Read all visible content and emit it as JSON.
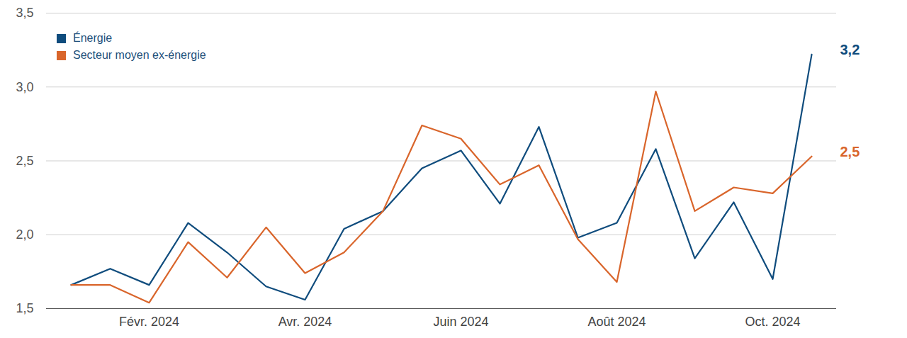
{
  "chart_data": {
    "type": "line",
    "categories": [
      null,
      null,
      "Févr. 2024",
      null,
      null,
      null,
      "Avr. 2024",
      null,
      null,
      null,
      "Juin 2024",
      null,
      null,
      null,
      "Août 2024",
      null,
      null,
      null,
      "Oct. 2024",
      null
    ],
    "series": [
      {
        "name": "Énergie",
        "color": "#0f4c7d",
        "values": [
          1.66,
          1.77,
          1.66,
          2.08,
          1.88,
          1.65,
          1.56,
          2.04,
          2.16,
          2.45,
          2.57,
          2.21,
          2.73,
          1.98,
          2.08,
          2.58,
          1.84,
          2.22,
          1.7,
          3.22
        ],
        "value_labels": [
          null,
          null,
          null,
          null,
          null,
          null,
          null,
          null,
          null,
          null,
          null,
          null,
          null,
          null,
          null,
          null,
          null,
          null,
          null,
          "3,2"
        ]
      },
      {
        "name": "Secteur moyen ex-énergie",
        "color": "#d9652b",
        "values": [
          1.66,
          1.66,
          1.54,
          1.95,
          1.71,
          2.05,
          1.74,
          1.88,
          2.16,
          2.74,
          2.65,
          2.34,
          2.47,
          1.97,
          1.68,
          2.97,
          2.16,
          2.32,
          2.28,
          2.53
        ],
        "value_labels": [
          null,
          null,
          null,
          null,
          null,
          null,
          null,
          null,
          null,
          null,
          null,
          null,
          null,
          null,
          null,
          null,
          null,
          null,
          null,
          "2,5"
        ]
      }
    ],
    "ylim": [
      1.5,
      3.5
    ],
    "yticks": [
      {
        "value": 1.5,
        "label": "1,5"
      },
      {
        "value": 2.0,
        "label": "2,0"
      },
      {
        "value": 2.5,
        "label": "2,5"
      },
      {
        "value": 3.0,
        "label": "3,0"
      },
      {
        "value": 3.5,
        "label": "3,5"
      }
    ],
    "grid": true,
    "legend": "top-left"
  }
}
